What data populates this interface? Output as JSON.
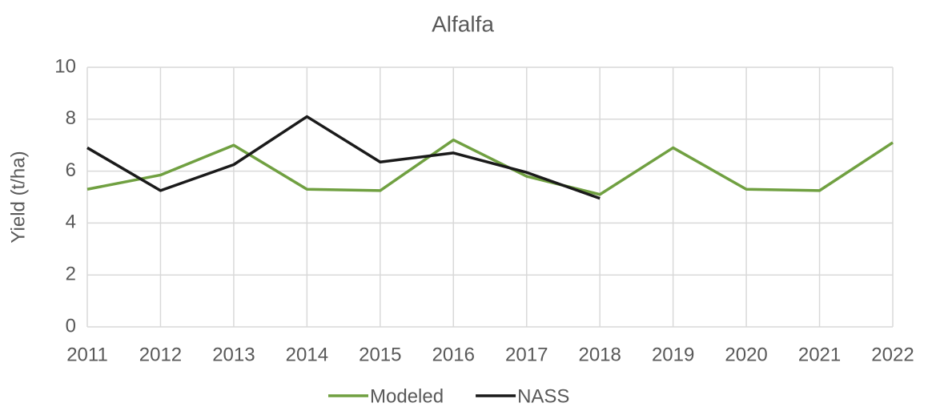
{
  "chart_data": {
    "type": "line",
    "title": "Alfalfa",
    "y_label": "Yield (t/ha)",
    "categories": [
      "2011",
      "2012",
      "2013",
      "2014",
      "2015",
      "2016",
      "2017",
      "2018",
      "2019",
      "2020",
      "2021",
      "2022"
    ],
    "series": [
      {
        "name": "Modeled",
        "color": "#70a041",
        "values": [
          5.3,
          5.85,
          7.0,
          5.3,
          5.25,
          7.2,
          5.8,
          5.1,
          6.9,
          5.3,
          5.25,
          7.1
        ]
      },
      {
        "name": "NASS",
        "color": "#1a1a1a",
        "values": [
          6.9,
          5.25,
          6.25,
          8.1,
          6.35,
          6.7,
          5.95,
          4.95,
          null,
          null,
          null,
          null
        ]
      }
    ],
    "ylim": [
      0,
      10
    ],
    "yticks": [
      0,
      2,
      4,
      6,
      8,
      10
    ],
    "grid": true,
    "legend": "bottom"
  }
}
